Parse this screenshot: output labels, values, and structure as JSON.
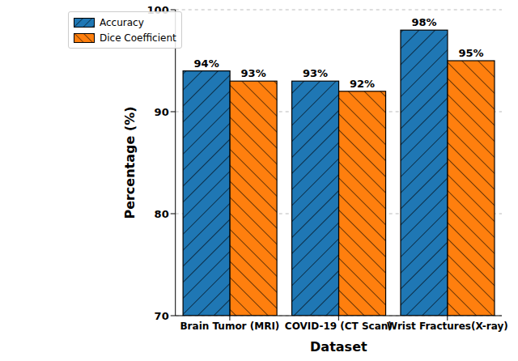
{
  "chart_data": {
    "type": "bar",
    "x_label": "Dataset",
    "y_label": "Percentage (%)",
    "categories": [
      "Brain Tumor (MRI)",
      "COVID-19 (CT Scan)",
      "Wrist Fractures(X-ray)"
    ],
    "series": [
      {
        "name": "Accuracy",
        "color": "#1f77b4",
        "values": [
          94,
          93,
          98
        ],
        "value_labels": [
          "94%",
          "93%",
          "98%"
        ]
      },
      {
        "name": "Dice Coefficient",
        "color": "#ff7f0e",
        "values": [
          93,
          92,
          95
        ],
        "value_labels": [
          "93%",
          "92%",
          "95%"
        ]
      }
    ],
    "ylim": [
      70,
      100
    ],
    "yticks": [
      70,
      80,
      90,
      100
    ],
    "grid": true,
    "legend": "upper left",
    "data_labels": true
  }
}
